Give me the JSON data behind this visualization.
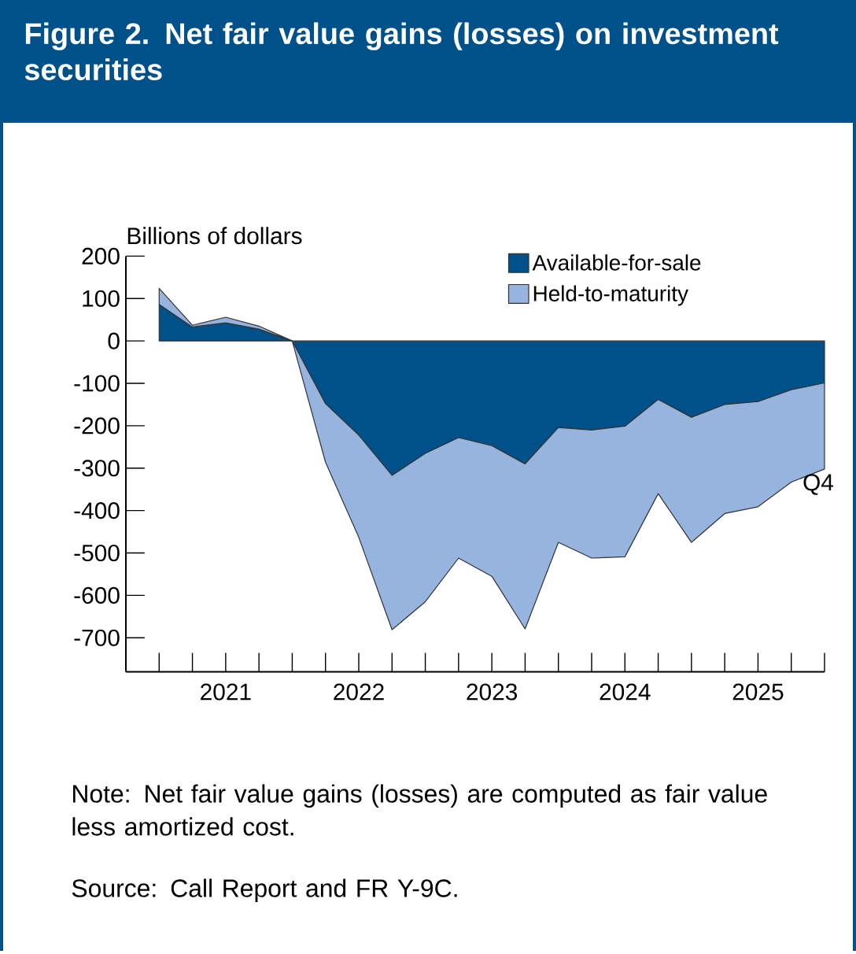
{
  "chart_data": {
    "type": "area",
    "stacked": true,
    "title": "Figure 2. Net fair value gains (losses) on investment securities",
    "ylabel": "Billions of dollars",
    "x": [
      2021.0,
      2021.25,
      2021.5,
      2021.75,
      2022.0,
      2022.25,
      2022.5,
      2022.75,
      2023.0,
      2023.25,
      2023.5,
      2023.75,
      2024.0,
      2024.25,
      2024.5,
      2024.75,
      2025.0,
      2025.25,
      2025.5,
      2025.75,
      2026.0
    ],
    "series": [
      {
        "name": "Available-for-sale",
        "color": "#00518a",
        "values": [
          86,
          33,
          43,
          28,
          0,
          -148,
          -222,
          -317,
          -265,
          -228,
          -247,
          -290,
          -204,
          -210,
          -201,
          -138,
          -180,
          -150,
          -143,
          -115,
          -99
        ]
      },
      {
        "name": "Held-to-maturity",
        "color": "#96b4de",
        "values": [
          38,
          4,
          13,
          7,
          0,
          -138,
          -241,
          -364,
          -350,
          -284,
          -308,
          -389,
          -271,
          -302,
          -308,
          -222,
          -295,
          -257,
          -248,
          -218,
          -203
        ]
      }
    ],
    "xlim": [
      2020.75,
      2026.0
    ],
    "xticks": [
      {
        "value": 2021.0,
        "label": null
      },
      {
        "value": 2021.25,
        "label": null
      },
      {
        "value": 2021.5,
        "label": "2021"
      },
      {
        "value": 2021.75,
        "label": null
      },
      {
        "value": 2022.0,
        "label": null
      },
      {
        "value": 2022.25,
        "label": null
      },
      {
        "value": 2022.5,
        "label": "2022"
      },
      {
        "value": 2022.75,
        "label": null
      },
      {
        "value": 2023.0,
        "label": null
      },
      {
        "value": 2023.25,
        "label": null
      },
      {
        "value": 2023.5,
        "label": "2023"
      },
      {
        "value": 2023.75,
        "label": null
      },
      {
        "value": 2024.0,
        "label": null
      },
      {
        "value": 2024.25,
        "label": null
      },
      {
        "value": 2024.5,
        "label": "2024"
      },
      {
        "value": 2024.75,
        "label": null
      },
      {
        "value": 2025.0,
        "label": null
      },
      {
        "value": 2025.25,
        "label": null
      },
      {
        "value": 2025.5,
        "label": "2025"
      },
      {
        "value": 2025.75,
        "label": null
      },
      {
        "value": 2026.0,
        "label": null
      }
    ],
    "ylim": [
      -780,
      200
    ],
    "yticks": [
      200,
      100,
      0,
      -100,
      -200,
      -300,
      -400,
      -500,
      -600,
      -700
    ],
    "legend": "top right",
    "annotations": [
      {
        "text": "Q4",
        "x": 2026.0,
        "y": -302
      },
      "Note: Net fair value gains (losses) are computed as fair value less amortized cost.",
      "Source: Call Report and FR Y-9C."
    ]
  }
}
